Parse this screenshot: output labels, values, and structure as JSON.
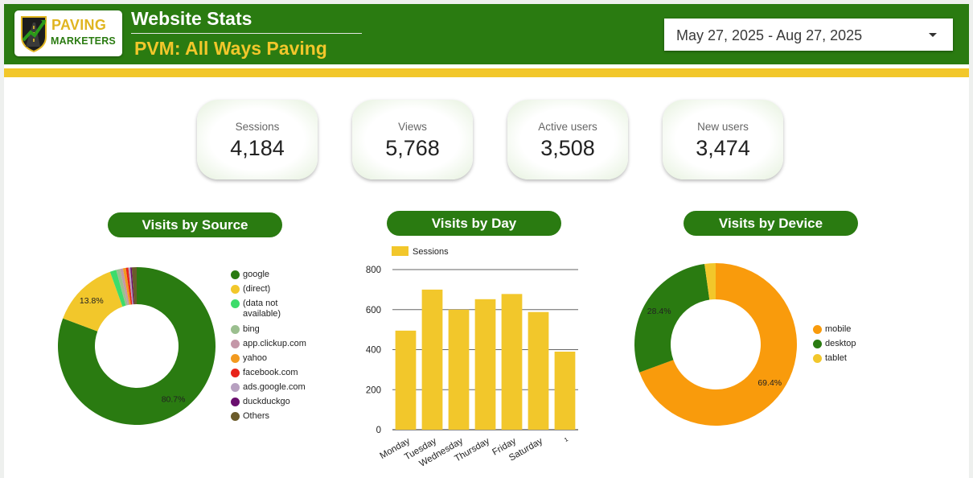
{
  "header": {
    "logo_line1": "PAVING",
    "logo_line2": "MARKETERS",
    "title": "Website Stats",
    "subtitle": "PVM: All Ways Paving",
    "date_range": "May 27, 2025 - Aug 27, 2025",
    "colors": {
      "header_green": "#2a7b11",
      "accent_yellow": "#f2c72b"
    }
  },
  "kpis": [
    {
      "label": "Sessions",
      "value": "4,184"
    },
    {
      "label": "Views",
      "value": "5,768"
    },
    {
      "label": "Active users",
      "value": "3,508"
    },
    {
      "label": "New users",
      "value": "3,474"
    }
  ],
  "charts": {
    "source_title": "Visits by Source",
    "day_title": "Visits by Day",
    "device_title": "Visits by Device"
  },
  "chart_data": [
    {
      "type": "pie",
      "title": "Visits by Source",
      "donut": true,
      "legend_position": "right",
      "categories": [
        "google",
        "(direct)",
        "(data not available)",
        "bing",
        "app.clickup.com",
        "yahoo",
        "facebook.com",
        "ads.google.com",
        "duckduckgo",
        "Others"
      ],
      "values": [
        80.7,
        13.8,
        1.3,
        0.8,
        0.6,
        0.6,
        0.5,
        0.4,
        0.3,
        1.0
      ],
      "labels": [
        "80.7%",
        "13.8%",
        "",
        "",
        "",
        "",
        "",
        "",
        "",
        ""
      ],
      "colors": [
        "#2a7b11",
        "#f2c72b",
        "#3ddc6b",
        "#9bbf8f",
        "#c497a8",
        "#f29a1f",
        "#e8231a",
        "#b7a0c0",
        "#6a0f6e",
        "#6b5b2a"
      ]
    },
    {
      "type": "bar",
      "title": "Visits by Day",
      "legend_position": "top-left",
      "categories": [
        "Monday",
        "Tuesday",
        "Wednesday",
        "Thursday",
        "Friday",
        "Saturday",
        "¹"
      ],
      "series": [
        {
          "name": "Sessions",
          "color": "#f2c72b",
          "values": [
            495,
            700,
            600,
            652,
            678,
            588,
            390
          ]
        }
      ],
      "ylim": [
        0,
        800
      ],
      "yticks": [
        "0",
        "200",
        "400",
        "600",
        "800"
      ],
      "grid": true
    },
    {
      "type": "pie",
      "title": "Visits by Device",
      "donut": true,
      "legend_position": "right",
      "categories": [
        "mobile",
        "desktop",
        "tablet"
      ],
      "values": [
        69.4,
        28.4,
        2.2
      ],
      "labels": [
        "69.4%",
        "28.4%",
        ""
      ],
      "colors": [
        "#f99b0c",
        "#2a7b11",
        "#f2c72b"
      ]
    }
  ]
}
